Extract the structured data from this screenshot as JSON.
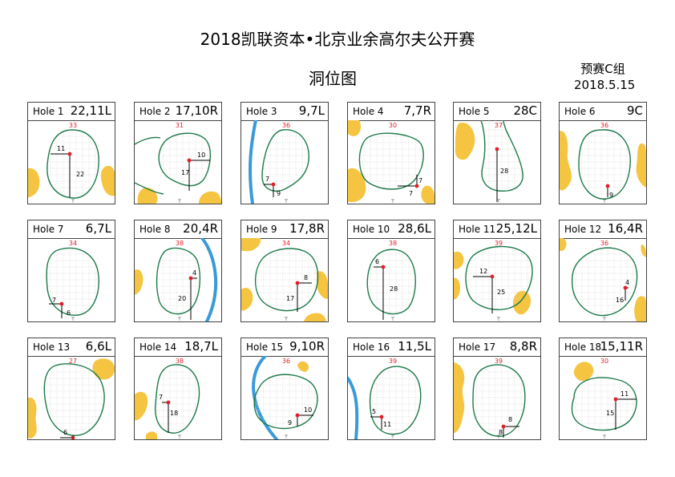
{
  "title": "2018凯联资本•北京业余高尔夫公开赛",
  "subtitle": "洞位图",
  "group": "预赛C组",
  "date": "2018.5.15",
  "colors": {
    "green_outline": "#1d7a4a",
    "hazard_sand": "#f5c542",
    "water": "#3a9ad9",
    "pin": "#e0202a",
    "depth_label": "#e0202a"
  },
  "holes": [
    {
      "name": "Hole 1",
      "pos": "22,11L",
      "depth": "33",
      "a": "11",
      "b": "22"
    },
    {
      "name": "Hole 2",
      "pos": "17,10R",
      "depth": "31",
      "a": "10",
      "b": "17"
    },
    {
      "name": "Hole 3",
      "pos": "9,7L",
      "depth": "36",
      "a": "7",
      "b": "9"
    },
    {
      "name": "Hole 4",
      "pos": "7,7R",
      "depth": "30",
      "a": "7",
      "b": "7"
    },
    {
      "name": "Hole 5",
      "pos": "28C",
      "depth": "37",
      "a": "",
      "b": "28"
    },
    {
      "name": "Hole 6",
      "pos": "9C",
      "depth": "36",
      "a": "",
      "b": "9"
    },
    {
      "name": "Hole 7",
      "pos": "6,7L",
      "depth": "34",
      "a": "7",
      "b": "6"
    },
    {
      "name": "Hole 8",
      "pos": "20,4R",
      "depth": "38",
      "a": "4",
      "b": "20"
    },
    {
      "name": "Hole 9",
      "pos": "17,8R",
      "depth": "34",
      "a": "8",
      "b": "17"
    },
    {
      "name": "Hole 10",
      "pos": "28,6L",
      "depth": "38",
      "a": "6",
      "b": "28"
    },
    {
      "name": "Hole 11",
      "pos": "25,12L",
      "depth": "39",
      "a": "12",
      "b": "25"
    },
    {
      "name": "Hole 12",
      "pos": "16,4R",
      "depth": "36",
      "a": "4",
      "b": "16"
    },
    {
      "name": "Hole 13",
      "pos": "6,6L",
      "depth": "27",
      "a": "6",
      "b": "6"
    },
    {
      "name": "Hole 14",
      "pos": "18,7L",
      "depth": "38",
      "a": "7",
      "b": "18"
    },
    {
      "name": "Hole 15",
      "pos": "9,10R",
      "depth": "36",
      "a": "10",
      "b": "9"
    },
    {
      "name": "Hole 16",
      "pos": "11,5L",
      "depth": "39",
      "a": "5",
      "b": "11"
    },
    {
      "name": "Hole 17",
      "pos": "8,8R",
      "depth": "39",
      "a": "8",
      "b": "8"
    },
    {
      "name": "Hole 18",
      "pos": "15,11R",
      "depth": "30",
      "a": "11",
      "b": "15"
    }
  ]
}
